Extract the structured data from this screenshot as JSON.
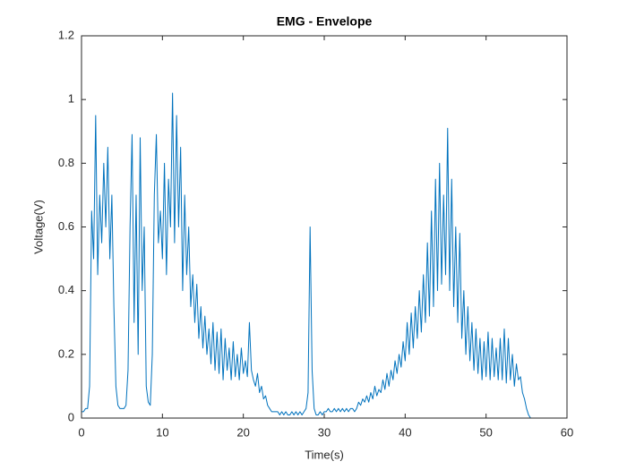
{
  "chart_data": {
    "type": "line",
    "title": "EMG - Envelope",
    "x_label": "Time(s)",
    "y_label": "Voltage(V)",
    "color": "#0072BD",
    "grid": false,
    "xlim": [
      0,
      60
    ],
    "ylim": [
      0,
      1.2
    ],
    "xticks": [
      0,
      10,
      20,
      30,
      40,
      50,
      60
    ],
    "yticks": [
      0,
      0.2,
      0.4,
      0.6,
      0.8,
      1,
      1.2
    ],
    "x": [
      0,
      0.25,
      0.5,
      0.75,
      1,
      1.25,
      1.5,
      1.75,
      2,
      2.25,
      2.5,
      2.75,
      3,
      3.25,
      3.5,
      3.75,
      4,
      4.25,
      4.5,
      4.75,
      5,
      5.25,
      5.5,
      5.75,
      6,
      6.25,
      6.5,
      6.75,
      7,
      7.25,
      7.5,
      7.75,
      8,
      8.25,
      8.5,
      8.75,
      9,
      9.25,
      9.5,
      9.75,
      10,
      10.25,
      10.5,
      10.75,
      11,
      11.25,
      11.5,
      11.75,
      12,
      12.25,
      12.5,
      12.75,
      13,
      13.25,
      13.5,
      13.75,
      14,
      14.25,
      14.5,
      14.75,
      15,
      15.25,
      15.5,
      15.75,
      16,
      16.25,
      16.5,
      16.75,
      17,
      17.25,
      17.5,
      17.75,
      18,
      18.25,
      18.5,
      18.75,
      19,
      19.25,
      19.5,
      19.75,
      20,
      20.25,
      20.5,
      20.75,
      21,
      21.25,
      21.5,
      21.75,
      22,
      22.25,
      22.5,
      22.75,
      23,
      23.25,
      23.5,
      23.75,
      24,
      24.25,
      24.5,
      24.75,
      25,
      25.25,
      25.5,
      25.75,
      26,
      26.25,
      26.5,
      26.75,
      27,
      27.25,
      27.5,
      27.75,
      28,
      28.25,
      28.5,
      28.75,
      29,
      29.25,
      29.5,
      29.75,
      30,
      30.25,
      30.5,
      30.75,
      31,
      31.25,
      31.5,
      31.75,
      32,
      32.25,
      32.5,
      32.75,
      33,
      33.25,
      33.5,
      33.75,
      34,
      34.25,
      34.5,
      34.75,
      35,
      35.25,
      35.5,
      35.75,
      36,
      36.25,
      36.5,
      36.75,
      37,
      37.25,
      37.5,
      37.75,
      38,
      38.25,
      38.5,
      38.75,
      39,
      39.25,
      39.5,
      39.75,
      40,
      40.25,
      40.5,
      40.75,
      41,
      41.25,
      41.5,
      41.75,
      42,
      42.25,
      42.5,
      42.75,
      43,
      43.25,
      43.5,
      43.75,
      44,
      44.25,
      44.5,
      44.75,
      45,
      45.25,
      45.5,
      45.75,
      46,
      46.25,
      46.5,
      46.75,
      47,
      47.25,
      47.5,
      47.75,
      48,
      48.25,
      48.5,
      48.75,
      49,
      49.25,
      49.5,
      49.75,
      50,
      50.25,
      50.5,
      50.75,
      51,
      51.25,
      51.5,
      51.75,
      52,
      52.25,
      52.5,
      52.75,
      53,
      53.25,
      53.5,
      53.75,
      54,
      54.25,
      54.5,
      54.75,
      55,
      55.25,
      55.5,
      55.75,
      56,
      57,
      58
    ],
    "values": [
      0.02,
      0.02,
      0.03,
      0.03,
      0.1,
      0.65,
      0.5,
      0.95,
      0.45,
      0.7,
      0.55,
      0.8,
      0.6,
      0.85,
      0.5,
      0.7,
      0.35,
      0.1,
      0.04,
      0.03,
      0.03,
      0.03,
      0.04,
      0.15,
      0.6,
      0.89,
      0.3,
      0.7,
      0.2,
      0.88,
      0.4,
      0.6,
      0.1,
      0.05,
      0.04,
      0.2,
      0.7,
      0.89,
      0.55,
      0.65,
      0.5,
      0.8,
      0.45,
      0.75,
      0.6,
      1.02,
      0.55,
      0.95,
      0.6,
      0.85,
      0.4,
      0.7,
      0.45,
      0.6,
      0.35,
      0.45,
      0.3,
      0.42,
      0.25,
      0.35,
      0.22,
      0.32,
      0.2,
      0.28,
      0.17,
      0.3,
      0.15,
      0.27,
      0.14,
      0.28,
      0.12,
      0.25,
      0.15,
      0.22,
      0.12,
      0.24,
      0.13,
      0.2,
      0.12,
      0.22,
      0.14,
      0.18,
      0.13,
      0.3,
      0.15,
      0.12,
      0.1,
      0.14,
      0.08,
      0.1,
      0.06,
      0.07,
      0.04,
      0.03,
      0.02,
      0.02,
      0.02,
      0.02,
      0.01,
      0.02,
      0.01,
      0.02,
      0.01,
      0.01,
      0.02,
      0.01,
      0.02,
      0.01,
      0.02,
      0.01,
      0.02,
      0.03,
      0.08,
      0.6,
      0.15,
      0.03,
      0.01,
      0.01,
      0.02,
      0.01,
      0.02,
      0.02,
      0.03,
      0.02,
      0.02,
      0.03,
      0.02,
      0.03,
      0.02,
      0.03,
      0.02,
      0.03,
      0.02,
      0.03,
      0.03,
      0.02,
      0.03,
      0.05,
      0.04,
      0.06,
      0.05,
      0.07,
      0.05,
      0.08,
      0.06,
      0.1,
      0.07,
      0.09,
      0.08,
      0.12,
      0.09,
      0.14,
      0.1,
      0.15,
      0.12,
      0.18,
      0.14,
      0.2,
      0.16,
      0.24,
      0.18,
      0.3,
      0.2,
      0.33,
      0.22,
      0.35,
      0.25,
      0.4,
      0.27,
      0.45,
      0.3,
      0.55,
      0.32,
      0.65,
      0.35,
      0.75,
      0.4,
      0.8,
      0.42,
      0.7,
      0.45,
      0.91,
      0.4,
      0.75,
      0.35,
      0.6,
      0.3,
      0.58,
      0.25,
      0.4,
      0.2,
      0.35,
      0.18,
      0.3,
      0.15,
      0.28,
      0.14,
      0.25,
      0.12,
      0.24,
      0.13,
      0.27,
      0.12,
      0.25,
      0.13,
      0.22,
      0.12,
      0.25,
      0.12,
      0.28,
      0.11,
      0.25,
      0.12,
      0.2,
      0.1,
      0.17,
      0.12,
      0.13,
      0.08,
      0.06,
      0.03,
      0.01,
      0,
      0,
      0,
      0,
      0
    ]
  }
}
